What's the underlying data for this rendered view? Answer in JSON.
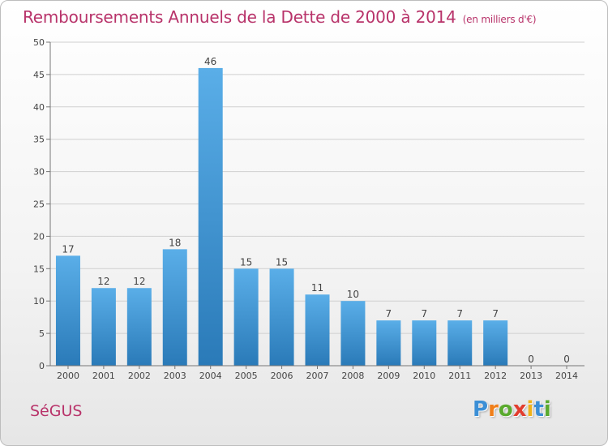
{
  "header": {
    "title": "Remboursements Annuels de la Dette de 2000 à 2014",
    "unit": "(en milliers d'€)"
  },
  "commune": "SéGUS",
  "logo": {
    "letters": [
      "P",
      "r",
      "o",
      "x",
      "i",
      "t",
      "i"
    ],
    "colors": [
      "#3b8fd6",
      "#f07f1a",
      "#5aaa2e",
      "#e23d2e",
      "#f0b21a",
      "#3b8fd6",
      "#5aaa2e"
    ]
  },
  "colors": {
    "bar_top": "#5aaee8",
    "bar_bottom": "#2a7ab8",
    "grid": "#d0d0d0",
    "axis": "#777777"
  },
  "chart_data": {
    "type": "bar",
    "title": "Remboursements Annuels de la Dette de 2000 à 2014",
    "xlabel": "",
    "ylabel": "",
    "categories": [
      "2000",
      "2001",
      "2002",
      "2003",
      "2004",
      "2005",
      "2006",
      "2007",
      "2008",
      "2009",
      "2010",
      "2011",
      "2012",
      "2013",
      "2014"
    ],
    "values": [
      17,
      12,
      12,
      18,
      46,
      15,
      15,
      11,
      10,
      7,
      7,
      7,
      7,
      0,
      0
    ],
    "ylim": [
      0,
      50
    ],
    "yticks": [
      0,
      5,
      10,
      15,
      20,
      25,
      30,
      35,
      40,
      45,
      50
    ],
    "grid": true,
    "legend": "none"
  }
}
